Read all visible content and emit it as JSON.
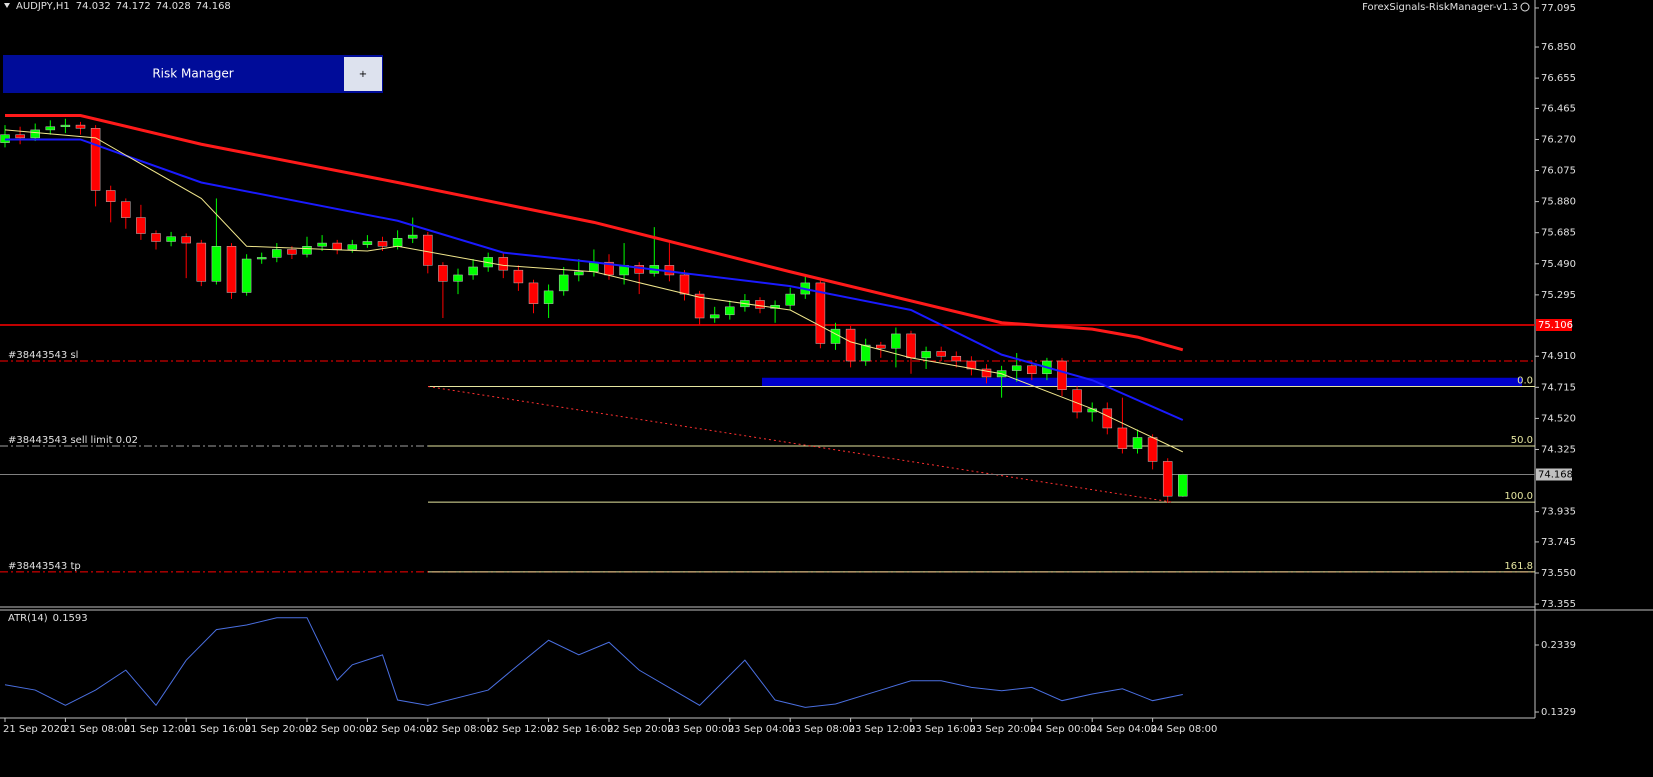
{
  "header": {
    "symbol": "AUDJPY,H1",
    "indicator_name": "ForexSignals-RiskManager-v1.3"
  },
  "panel": {
    "title": "Risk Manager",
    "button": "+"
  },
  "chart_data": {
    "type": "candlestick",
    "categories": [
      "21 Sep 2020",
      null,
      null,
      null,
      "21 Sep 08:00",
      null,
      null,
      null,
      "21 Sep 12:00",
      null,
      null,
      null,
      "21 Sep 16:00",
      null,
      null,
      null,
      "21 Sep 20:00",
      null,
      null,
      null,
      "22 Sep 00:00",
      null,
      null,
      null,
      "22 Sep 04:00",
      null,
      null,
      null,
      "22 Sep 08:00",
      null,
      null,
      null,
      "22 Sep 12:00",
      null,
      null,
      null,
      "22 Sep 16:00",
      null,
      null,
      null,
      "22 Sep 20:00",
      null,
      null,
      null,
      "23 Sep 00:00",
      null,
      null,
      null,
      "23 Sep 04:00",
      null,
      null,
      null,
      "23 Sep 08:00",
      null,
      null,
      null,
      "23 Sep 12:00",
      null,
      null,
      null,
      "23 Sep 16:00",
      null,
      null,
      null,
      "23 Sep 20:00",
      null,
      null,
      null,
      "24 Sep 00:00",
      null,
      null,
      null,
      "24 Sep 04:00",
      null,
      null,
      null,
      "24 Sep 08:00",
      null,
      null
    ],
    "open": [
      76.25,
      76.3,
      76.28,
      76.33,
      76.35,
      76.36,
      76.34,
      75.95,
      75.88,
      75.78,
      75.68,
      75.63,
      75.66,
      75.62,
      75.38,
      75.6,
      75.31,
      75.52,
      75.53,
      75.58,
      75.55,
      75.6,
      75.62,
      75.58,
      75.61,
      75.63,
      75.6,
      75.65,
      75.67,
      75.48,
      75.38,
      75.42,
      75.47,
      75.53,
      75.45,
      75.37,
      75.24,
      75.32,
      75.42,
      75.44,
      75.5,
      75.42,
      75.48,
      75.43,
      75.48,
      75.42,
      75.3,
      75.15,
      75.17,
      75.22,
      75.26,
      75.21,
      75.23,
      75.3,
      75.37,
      74.99,
      75.08,
      74.88,
      74.98,
      74.96,
      75.05,
      74.9,
      74.94,
      74.91,
      74.88,
      74.83,
      74.78,
      74.82,
      74.85,
      74.8,
      74.88,
      74.7,
      74.56,
      74.58,
      74.46,
      74.33,
      74.4,
      74.25,
      74.032
    ],
    "high": [
      76.36,
      76.35,
      76.37,
      76.39,
      76.4,
      76.38,
      76.36,
      75.98,
      75.9,
      75.86,
      75.7,
      75.69,
      75.68,
      75.64,
      75.9,
      75.62,
      75.55,
      75.56,
      75.62,
      75.6,
      75.66,
      75.67,
      75.64,
      75.64,
      75.67,
      75.66,
      75.7,
      75.78,
      75.69,
      75.5,
      75.46,
      75.52,
      75.56,
      75.56,
      75.48,
      75.39,
      75.36,
      75.47,
      75.52,
      75.58,
      75.55,
      75.62,
      75.5,
      75.72,
      75.62,
      75.45,
      75.32,
      75.22,
      75.26,
      75.3,
      75.28,
      75.26,
      75.34,
      75.41,
      75.39,
      75.12,
      75.1,
      75.02,
      75.0,
      75.09,
      75.07,
      74.97,
      74.97,
      74.94,
      74.91,
      74.86,
      74.85,
      74.93,
      74.88,
      74.9,
      74.9,
      74.72,
      74.62,
      74.62,
      74.65,
      74.45,
      74.42,
      74.27,
      74.172
    ],
    "low": [
      76.22,
      76.24,
      76.26,
      76.3,
      76.31,
      76.3,
      75.85,
      75.75,
      75.71,
      75.64,
      75.58,
      75.6,
      75.4,
      75.35,
      75.36,
      75.27,
      75.29,
      75.49,
      75.5,
      75.52,
      75.53,
      75.57,
      75.55,
      75.56,
      75.59,
      75.57,
      75.58,
      75.62,
      75.43,
      75.15,
      75.3,
      75.39,
      75.44,
      75.4,
      75.32,
      75.18,
      75.15,
      75.29,
      75.38,
      75.41,
      75.39,
      75.36,
      75.3,
      75.41,
      75.38,
      75.26,
      75.11,
      75.12,
      75.14,
      75.19,
      75.18,
      75.12,
      75.2,
      75.27,
      74.96,
      74.95,
      74.84,
      74.85,
      74.9,
      74.84,
      74.8,
      74.83,
      74.88,
      74.84,
      74.79,
      74.74,
      74.65,
      74.75,
      74.76,
      74.76,
      74.66,
      74.52,
      74.5,
      74.42,
      74.3,
      74.3,
      74.2,
      73.99,
      74.028
    ],
    "close": [
      76.3,
      76.28,
      76.33,
      76.35,
      76.36,
      76.34,
      75.95,
      75.88,
      75.78,
      75.68,
      75.63,
      75.66,
      75.62,
      75.38,
      75.6,
      75.31,
      75.52,
      75.53,
      75.58,
      75.55,
      75.6,
      75.62,
      75.58,
      75.61,
      75.63,
      75.6,
      75.65,
      75.67,
      75.48,
      75.38,
      75.42,
      75.47,
      75.53,
      75.45,
      75.37,
      75.24,
      75.32,
      75.42,
      75.44,
      75.5,
      75.42,
      75.48,
      75.43,
      75.48,
      75.42,
      75.3,
      75.15,
      75.17,
      75.22,
      75.26,
      75.21,
      75.23,
      75.3,
      75.37,
      74.99,
      75.08,
      74.88,
      74.98,
      74.96,
      75.05,
      74.9,
      74.94,
      74.91,
      74.88,
      74.83,
      74.78,
      74.82,
      74.85,
      74.8,
      74.88,
      74.7,
      74.56,
      74.58,
      74.46,
      74.33,
      74.4,
      74.25,
      74.032,
      74.168
    ],
    "up_color": "#00ff00",
    "down_color": "#ff0000",
    "ylim": [
      73.343,
      77.145
    ],
    "yticks": [
      77.095,
      {
        "value": 76.85,
        "label": "76.850"
      },
      76.655,
      76.465,
      {
        "value": 76.27,
        "label": "76.270"
      },
      76.075,
      {
        "value": 75.88,
        "label": "75.880"
      },
      75.685,
      {
        "value": 75.49,
        "label": "75.490"
      },
      75.295,
      {
        "value": 74.91,
        "label": "74.910"
      },
      74.715,
      {
        "value": 74.52,
        "label": "74.520"
      },
      74.325,
      73.935,
      73.745,
      {
        "value": 73.55,
        "label": "73.550"
      },
      73.355
    ],
    "indicators": [
      {
        "color": "#ff1a1a",
        "width": 3,
        "x": [
          0,
          5,
          13,
          26,
          39,
          52,
          66,
          72,
          75,
          78
        ],
        "values": [
          76.42,
          76.42,
          76.24,
          76.0,
          75.75,
          75.44,
          75.12,
          75.08,
          75.03,
          74.95
        ]
      },
      {
        "color": "#1a1aff",
        "width": 2,
        "x": [
          0,
          5,
          13,
          26,
          33,
          39,
          52,
          60,
          66,
          72,
          78
        ],
        "values": [
          76.27,
          76.27,
          76.0,
          75.76,
          75.56,
          75.5,
          75.35,
          75.2,
          74.92,
          74.76,
          74.51
        ]
      },
      {
        "color": "#f0e68c",
        "width": 1,
        "x": [
          0,
          6,
          13,
          16,
          24,
          26,
          33,
          39,
          46,
          52,
          56,
          60,
          66,
          72,
          78
        ],
        "values": [
          76.33,
          76.28,
          75.9,
          75.6,
          75.57,
          75.6,
          75.48,
          75.44,
          75.28,
          75.2,
          75.0,
          74.9,
          74.8,
          74.58,
          74.31
        ]
      }
    ],
    "levels": [
      {
        "value": 75.106,
        "color": "#ff0000"
      }
    ],
    "orders": [
      {
        "label": "#38443543 sl",
        "value": 74.88,
        "color": "#ff0000"
      },
      {
        "label": "#38443543 sell limit 0.02",
        "value": 74.347,
        "color": "#a0a0a0"
      },
      {
        "label": "#38443543 tp",
        "value": 73.557,
        "color": "#ff0000"
      }
    ],
    "fib": {
      "color": "#e6e6a0",
      "levels": [
        {
          "label": "0.0",
          "value": 74.72
        },
        {
          "label": "50.0",
          "value": 74.347
        },
        {
          "label": "100.0",
          "value": 73.995
        },
        {
          "label": "161.8",
          "value": 73.557
        }
      ]
    },
    "zone": {
      "low": 74.72,
      "high": 74.775,
      "color": "#0000cc"
    },
    "atr": {
      "title": "ATR(14)",
      "color": "#4a6fe0",
      "ylim": [
        0.1254,
        0.2836
      ],
      "yticks": [
        0.2339,
        0.1329
      ],
      "x": [
        0,
        2,
        4,
        6,
        8,
        10,
        12,
        14,
        16,
        18,
        20,
        22,
        23,
        25,
        26,
        28,
        32,
        34,
        36,
        38,
        40,
        42,
        46,
        49,
        51,
        53,
        55,
        58,
        60,
        62,
        64,
        66,
        68,
        70,
        72,
        74,
        76,
        78
      ],
      "values": [
        0.174,
        0.166,
        0.143,
        0.166,
        0.196,
        0.143,
        0.211,
        0.257,
        0.264,
        0.275,
        0.275,
        0.181,
        0.204,
        0.219,
        0.151,
        0.143,
        0.166,
        0.204,
        0.241,
        0.219,
        0.238,
        0.196,
        0.143,
        0.211,
        0.151,
        0.14,
        0.145,
        0.166,
        0.18,
        0.18,
        0.17,
        0.165,
        0.17,
        0.15,
        0.16,
        0.168,
        0.15,
        0.1593
      ]
    }
  }
}
